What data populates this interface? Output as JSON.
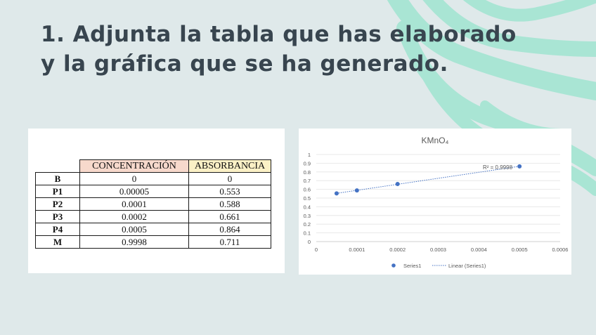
{
  "slide": {
    "title": "1. Adjunta la tabla que has elaborado y la gráfica que se ha generado."
  },
  "colors": {
    "background": "#dfe9ea",
    "decoration": "#a9e5d4",
    "title": "#38454f",
    "series": "#4472c4"
  },
  "table": {
    "headers": [
      "CONCENTRACIÓN",
      "ABSORBANCIA"
    ],
    "rows": [
      {
        "label": "B",
        "concentration": "0",
        "absorbance": "0"
      },
      {
        "label": "P1",
        "concentration": "0.00005",
        "absorbance": "0.553"
      },
      {
        "label": "P2",
        "concentration": "0.0001",
        "absorbance": "0.588"
      },
      {
        "label": "P3",
        "concentration": "0.0002",
        "absorbance": "0.661"
      },
      {
        "label": "P4",
        "concentration": "0.0005",
        "absorbance": "0.864"
      },
      {
        "label": "M",
        "concentration": "0.9998",
        "absorbance": "0.711"
      }
    ]
  },
  "chart_data": {
    "type": "scatter",
    "title": "KMnO₄",
    "xlabel": "",
    "ylabel": "",
    "xlim": [
      0,
      0.0006
    ],
    "ylim": [
      0,
      1
    ],
    "x_ticks": [
      "0",
      "0.0001",
      "0.0002",
      "0.0003",
      "0.0004",
      "0.0005",
      "0.0006"
    ],
    "y_ticks": [
      "0",
      "0.1",
      "0.2",
      "0.3",
      "0.4",
      "0.5",
      "0.6",
      "0.7",
      "0.8",
      "0.9",
      "1"
    ],
    "grid": true,
    "legend_position": "bottom",
    "series": [
      {
        "name": "Series1",
        "x": [
          5e-05,
          0.0001,
          0.0002,
          0.0005
        ],
        "y": [
          0.553,
          0.588,
          0.661,
          0.864
        ]
      }
    ],
    "trendline": {
      "name": "Linear (Series1)",
      "label": "R² = 0.9998"
    }
  }
}
